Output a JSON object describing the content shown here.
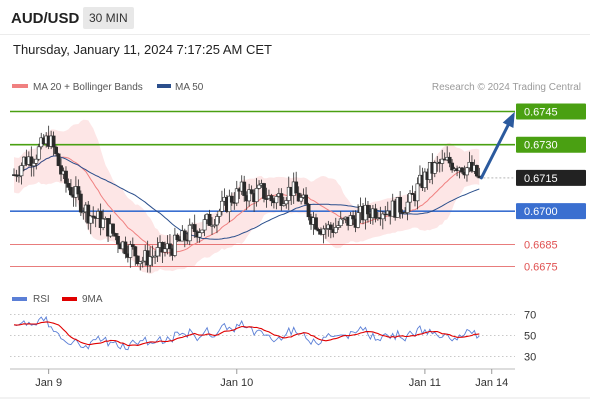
{
  "header": {
    "symbol": "AUD/USD",
    "timeframe": "30 MIN",
    "timestamp": "Thursday, January 11, 2024 7:17:25 AM CET"
  },
  "legend": {
    "items": [
      {
        "label": "MA 20 + Bollinger Bands",
        "color": "#f08080"
      },
      {
        "label": "MA 50",
        "color": "#2b4f8c"
      }
    ],
    "credit": "Research © 2024 Trading Central"
  },
  "rsi_legend": {
    "items": [
      {
        "label": "RSI",
        "color": "#5b7fd6"
      },
      {
        "label": "9MA",
        "color": "#e00000"
      }
    ]
  },
  "chart_data": [
    {
      "type": "candlestick",
      "ylim": [
        0.6668,
        0.6752
      ],
      "xlim": [
        0,
        101
      ],
      "x_ticks": [
        {
          "label": "Jan 9",
          "x": 7
        },
        {
          "label": "Jan 10",
          "x": 45
        },
        {
          "label": "Jan 11",
          "x": 83
        },
        {
          "label": "Jan 14",
          "x": 96.5
        }
      ],
      "current_price": {
        "label": "0.6715",
        "value": 0.6715
      },
      "levels": [
        {
          "label": "0.6745",
          "value": 0.6745,
          "style": "resistance",
          "color": "#4aa012"
        },
        {
          "label": "0.6730",
          "value": 0.673,
          "style": "resistance",
          "color": "#4aa012"
        },
        {
          "label": "0.6700",
          "value": 0.67,
          "style": "pivot",
          "color": "#3a6fd0"
        },
        {
          "label": "0.6685",
          "value": 0.6685,
          "style": "support",
          "color": "#e05050"
        },
        {
          "label": "0.6675",
          "value": 0.6675,
          "style": "support",
          "color": "#e05050"
        }
      ],
      "arrow": {
        "from": [
          94,
          0.6715
        ],
        "to": [
          101,
          0.6745
        ],
        "color": "#2b5a9e"
      },
      "series": [
        {
          "name": "MA 20 + Bollinger Bands",
          "color": "#f08080"
        },
        {
          "name": "MA 50",
          "color": "#2b4f8c"
        }
      ]
    },
    {
      "type": "line",
      "ylim": [
        20,
        80
      ],
      "y_ticks": [
        70,
        50,
        30
      ],
      "series": [
        {
          "name": "RSI",
          "color": "#5b7fd6"
        },
        {
          "name": "9MA",
          "color": "#e00000"
        }
      ]
    }
  ]
}
